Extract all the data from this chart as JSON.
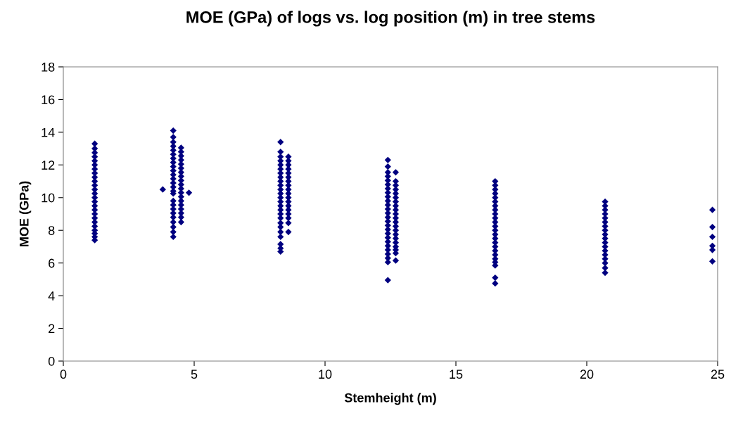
{
  "chart_data": {
    "type": "scatter",
    "title": "MOE (GPa) of logs vs. log position (m) in tree stems",
    "xlabel": "Stemheight (m)",
    "ylabel": "MOE (GPa)",
    "xlim": [
      0,
      25
    ],
    "xticks": [
      0,
      5,
      10,
      15,
      20,
      25
    ],
    "ylim": [
      0,
      18
    ],
    "yticks": [
      0,
      2,
      4,
      6,
      8,
      10,
      12,
      14,
      16,
      18
    ],
    "grid": false,
    "legend": false,
    "marker": "diamond",
    "series": [
      {
        "color": "#000080",
        "x": [
          1.2,
          1.2,
          1.2,
          1.2,
          1.2,
          1.2,
          1.2,
          1.2,
          1.2,
          1.2,
          1.2,
          1.2,
          1.2,
          1.2,
          1.2,
          1.2,
          1.2,
          1.2,
          1.2,
          1.2,
          1.2,
          1.2,
          1.2,
          1.2,
          1.2
        ],
        "values": [
          7.4,
          7.6,
          7.8,
          8.0,
          8.25,
          8.5,
          8.75,
          9.0,
          9.25,
          9.5,
          9.75,
          10.0,
          10.25,
          10.5,
          10.75,
          11.0,
          11.25,
          11.5,
          11.75,
          12.0,
          12.25,
          12.5,
          12.75,
          13.0,
          13.3
        ]
      },
      {
        "color": "#000080",
        "x": [
          4.2,
          4.2,
          4.2,
          4.2,
          4.2,
          4.2,
          4.2,
          4.2,
          4.2,
          4.2,
          4.2,
          4.2,
          4.2,
          4.2,
          4.2,
          4.2,
          4.2,
          4.2,
          4.2,
          4.2,
          4.2,
          4.2,
          4.2,
          4.2,
          4.2
        ],
        "values": [
          14.1,
          13.7,
          13.4,
          13.15,
          12.9,
          12.65,
          12.4,
          12.15,
          11.9,
          11.65,
          11.4,
          11.15,
          10.9,
          10.65,
          10.4,
          10.25,
          9.8,
          9.55,
          9.3,
          9.05,
          8.8,
          8.5,
          8.2,
          7.9,
          7.6
        ]
      },
      {
        "color": "#000080",
        "x": [
          4.5,
          4.5,
          4.5,
          4.5,
          4.5,
          4.5,
          4.5,
          4.5,
          4.5,
          4.5,
          4.5,
          4.5,
          4.5,
          4.5,
          4.5,
          4.5,
          4.5,
          4.5,
          4.5,
          3.8,
          4.8
        ],
        "values": [
          13.05,
          12.8,
          12.55,
          12.3,
          12.05,
          11.8,
          11.55,
          11.3,
          11.05,
          10.8,
          10.55,
          10.3,
          10.05,
          9.8,
          9.55,
          9.3,
          9.05,
          8.8,
          8.5,
          10.5,
          10.3
        ]
      },
      {
        "color": "#000080",
        "x": [
          8.3,
          8.3,
          8.3,
          8.3,
          8.3,
          8.3,
          8.3,
          8.3,
          8.3,
          8.3,
          8.3,
          8.3,
          8.3,
          8.3,
          8.3,
          8.3,
          8.3,
          8.3,
          8.3,
          8.3,
          8.3,
          8.3,
          8.3,
          8.3,
          8.3
        ],
        "values": [
          13.4,
          12.8,
          12.5,
          12.25,
          12.0,
          11.75,
          11.5,
          11.25,
          11.0,
          10.75,
          10.5,
          10.25,
          10.0,
          9.75,
          9.5,
          9.25,
          9.0,
          8.75,
          8.45,
          8.2,
          7.9,
          7.6,
          7.15,
          6.9,
          6.7
        ]
      },
      {
        "color": "#000080",
        "x": [
          8.6,
          8.6,
          8.6,
          8.6,
          8.6,
          8.6,
          8.6,
          8.6,
          8.6,
          8.6,
          8.6,
          8.6,
          8.6,
          8.6,
          8.6,
          8.6,
          8.6,
          8.6
        ],
        "values": [
          12.5,
          12.25,
          12.0,
          11.75,
          11.5,
          11.25,
          11.0,
          10.75,
          10.5,
          10.25,
          10.0,
          9.75,
          9.5,
          9.25,
          9.0,
          8.75,
          8.45,
          7.9
        ]
      },
      {
        "color": "#000080",
        "x": [
          12.4,
          12.4,
          12.4,
          12.4,
          12.4,
          12.4,
          12.4,
          12.4,
          12.4,
          12.4,
          12.4,
          12.4,
          12.4,
          12.4,
          12.4,
          12.4,
          12.4,
          12.4,
          12.4,
          12.4,
          12.4,
          12.4,
          12.4,
          12.4,
          12.4,
          12.4
        ],
        "values": [
          12.3,
          11.9,
          11.55,
          11.3,
          11.05,
          10.8,
          10.55,
          10.3,
          10.05,
          9.8,
          9.55,
          9.3,
          9.05,
          8.8,
          8.55,
          8.3,
          8.05,
          7.8,
          7.55,
          7.3,
          7.05,
          6.8,
          6.55,
          6.3,
          6.05,
          4.95
        ]
      },
      {
        "color": "#000080",
        "x": [
          12.7,
          12.7,
          12.7,
          12.7,
          12.7,
          12.7,
          12.7,
          12.7,
          12.7,
          12.7,
          12.7,
          12.7,
          12.7,
          12.7,
          12.7,
          12.7,
          12.7,
          12.7,
          12.7,
          12.7,
          12.7
        ],
        "values": [
          11.55,
          11.0,
          10.75,
          10.5,
          10.25,
          10.0,
          9.75,
          9.5,
          9.25,
          9.0,
          8.75,
          8.5,
          8.25,
          8.0,
          7.75,
          7.5,
          7.25,
          7.0,
          6.8,
          6.6,
          6.15
        ]
      },
      {
        "color": "#000080",
        "x": [
          16.5,
          16.5,
          16.5,
          16.5,
          16.5,
          16.5,
          16.5,
          16.5,
          16.5,
          16.5,
          16.5,
          16.5,
          16.5,
          16.5,
          16.5,
          16.5,
          16.5,
          16.5,
          16.5,
          16.5,
          16.5,
          16.5,
          16.5,
          16.5
        ],
        "values": [
          11.0,
          10.75,
          10.5,
          10.25,
          10.0,
          9.75,
          9.5,
          9.25,
          9.0,
          8.75,
          8.5,
          8.25,
          8.0,
          7.75,
          7.5,
          7.25,
          7.0,
          6.75,
          6.5,
          6.25,
          6.05,
          5.85,
          5.1,
          4.75
        ]
      },
      {
        "color": "#000080",
        "x": [
          20.7,
          20.7,
          20.7,
          20.7,
          20.7,
          20.7,
          20.7,
          20.7,
          20.7,
          20.7,
          20.7,
          20.7,
          20.7,
          20.7,
          20.7,
          20.7,
          20.7,
          20.7
        ],
        "values": [
          9.75,
          9.5,
          9.25,
          9.0,
          8.75,
          8.5,
          8.25,
          8.0,
          7.75,
          7.5,
          7.25,
          7.0,
          6.75,
          6.5,
          6.25,
          6.0,
          5.7,
          5.4
        ]
      },
      {
        "color": "#000080",
        "x": [
          24.8,
          24.8,
          24.8,
          24.8,
          24.8,
          24.8
        ],
        "values": [
          9.25,
          8.2,
          7.6,
          7.05,
          6.8,
          6.1
        ]
      }
    ]
  }
}
